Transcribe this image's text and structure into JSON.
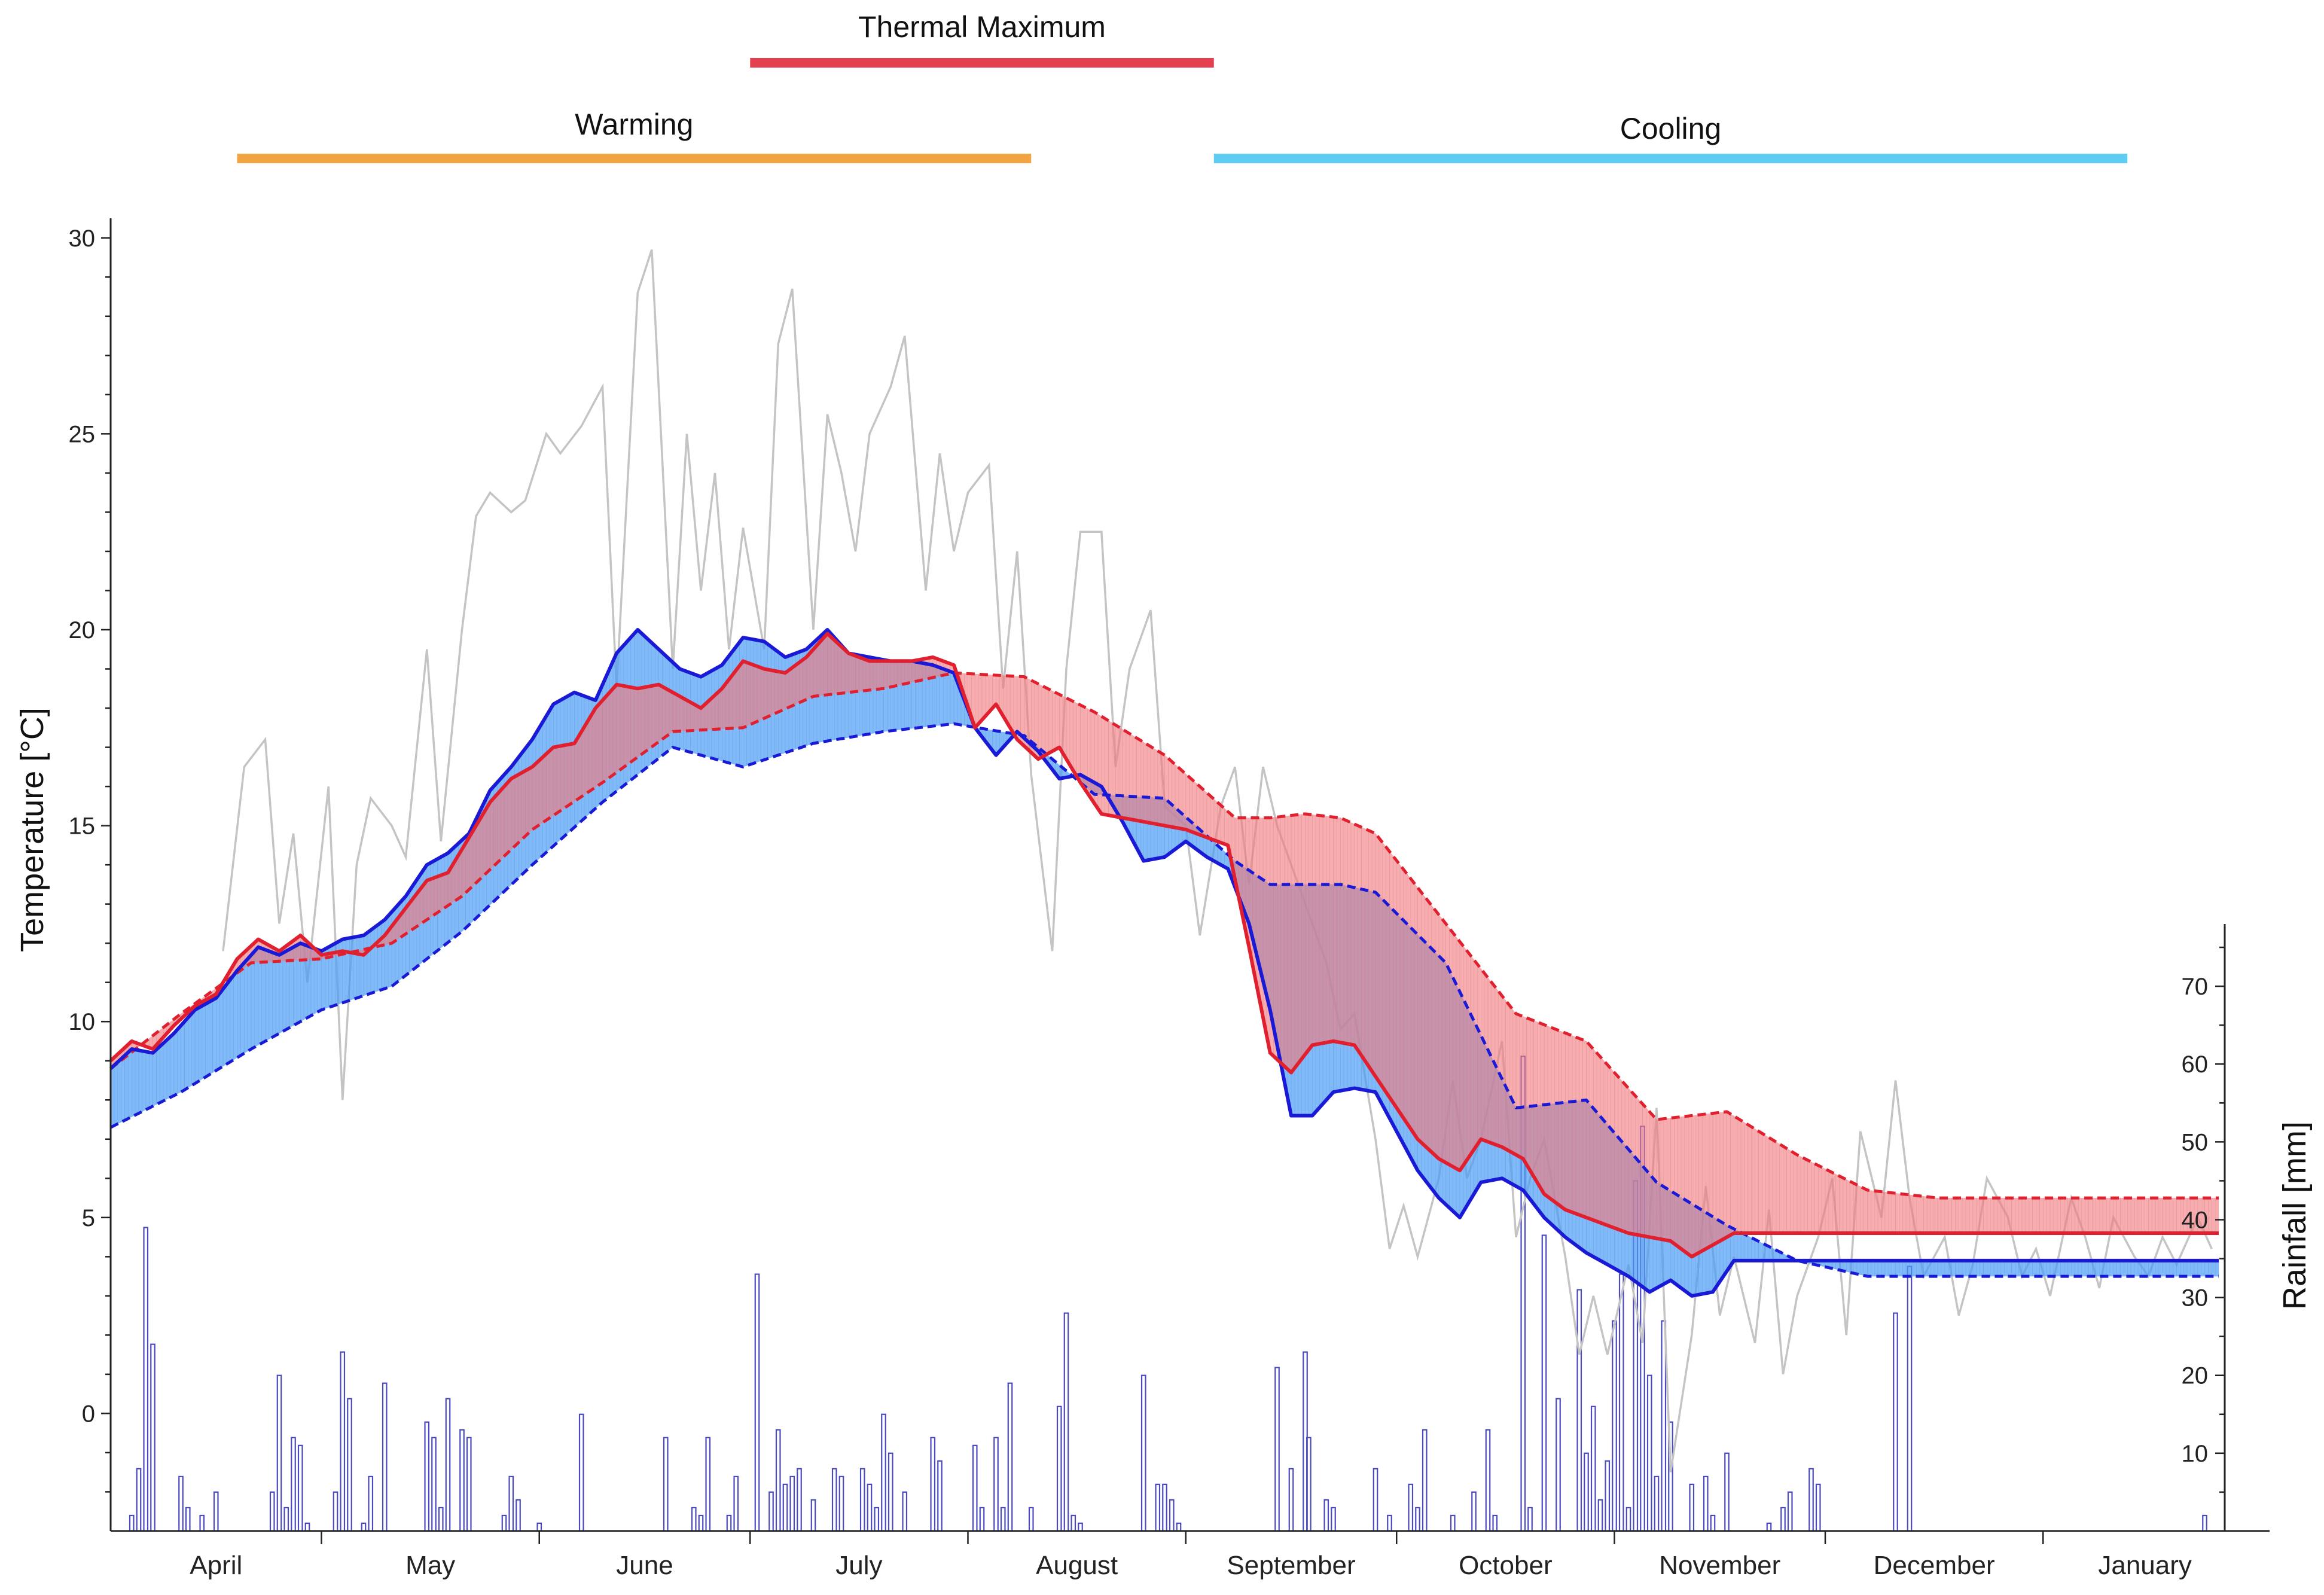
{
  "chart_data": {
    "type": "line",
    "title": "",
    "ylabel": "Temperature [°C]",
    "y2label": "Rainfall [mm]",
    "ylim": [
      -3,
      30.5
    ],
    "y2lim": [
      0,
      78
    ],
    "yticks": [
      0,
      5,
      10,
      15,
      20,
      25,
      30
    ],
    "y2ticks": [
      10,
      20,
      30,
      40,
      50,
      60,
      70
    ],
    "x_unit": "days since start of April",
    "xlim": [
      0,
      300
    ],
    "months": [
      "April",
      "May",
      "June",
      "July",
      "August",
      "September",
      "October",
      "November",
      "December",
      "January"
    ],
    "phases": [
      {
        "label": "Thermal Maximum",
        "start": 91,
        "end": 157,
        "color": "#e5404f"
      },
      {
        "label": "Warming",
        "start": 18,
        "end": 131,
        "color": "#f2a443"
      },
      {
        "label": "Cooling",
        "start": 157,
        "end": 287,
        "color": "#5fcdf2"
      }
    ],
    "colors": {
      "blue_line": "#1a1ad6",
      "red_line": "#e0202e",
      "blue_fill": "#4d9df5",
      "red_fill": "#f07a80",
      "air_temp": "#c4c4c4",
      "rain": "#4a4ac0"
    },
    "series": [
      {
        "name": "",
        "color": "#1a1ad6",
        "style": "solid",
        "x": [
          0,
          3,
          6,
          9,
          12,
          15,
          18,
          21,
          24,
          27,
          30,
          33,
          36,
          39,
          42,
          45,
          48,
          51,
          54,
          57,
          60,
          63,
          66,
          69,
          72,
          75,
          78,
          81,
          84,
          87,
          90,
          93,
          96,
          99,
          102,
          105,
          108,
          111,
          114,
          117,
          120,
          123,
          126,
          129,
          132,
          135,
          138,
          141,
          144,
          147,
          150,
          153,
          156,
          159,
          162,
          165,
          168,
          171,
          174,
          177,
          180,
          183,
          186,
          189,
          192,
          195,
          198,
          201,
          204,
          207,
          210,
          213,
          216,
          219,
          222,
          225,
          228,
          231,
          234,
          237,
          240,
          243,
          246,
          249,
          252,
          255,
          258,
          261,
          264,
          267,
          270,
          273,
          276,
          279,
          282,
          285,
          288,
          291,
          294,
          297,
          300
        ],
        "y": [
          8.8,
          9.3,
          9.2,
          9.7,
          10.3,
          10.6,
          11.3,
          11.9,
          11.7,
          12.0,
          11.8,
          12.1,
          12.2,
          12.6,
          13.2,
          14.0,
          14.3,
          14.8,
          15.9,
          16.5,
          17.2,
          18.1,
          18.4,
          18.2,
          19.4,
          20.0,
          19.5,
          19.0,
          18.8,
          19.1,
          19.8,
          19.7,
          19.3,
          19.5,
          20.0,
          19.4,
          19.3,
          19.2,
          19.2,
          19.1,
          18.9,
          17.5,
          16.8,
          17.4,
          16.9,
          16.2,
          16.3,
          16.0,
          15.1,
          14.1,
          14.2,
          14.6,
          14.2,
          13.9,
          12.5,
          10.3,
          7.6,
          7.6,
          8.2,
          8.3,
          8.2,
          7.2,
          6.2,
          5.5,
          5.0,
          5.9,
          6.0,
          5.7,
          5.0,
          4.5,
          4.1,
          3.8,
          3.5,
          3.1,
          3.4,
          3.0,
          3.1,
          3.9,
          3.9,
          3.9,
          3.9,
          3.9,
          3.9,
          3.9,
          3.9,
          3.9,
          3.9,
          3.9,
          3.9,
          3.9,
          3.9,
          3.9,
          3.9,
          3.9,
          3.9,
          3.9,
          3.9,
          3.9,
          3.9,
          3.9,
          3.9
        ]
      },
      {
        "name": "",
        "color": "#1a1ad6",
        "style": "dashed",
        "x": [
          0,
          10,
          20,
          30,
          40,
          50,
          60,
          70,
          80,
          90,
          100,
          110,
          120,
          130,
          140,
          150,
          160,
          165,
          170,
          175,
          180,
          190,
          200,
          210,
          220,
          230,
          240,
          250,
          260,
          270,
          280,
          290,
          300
        ],
        "y": [
          7.3,
          8.2,
          9.3,
          10.3,
          10.9,
          12.3,
          14.0,
          15.6,
          17.0,
          16.5,
          17.1,
          17.4,
          17.6,
          17.3,
          15.8,
          15.7,
          14.1,
          13.5,
          13.5,
          13.5,
          13.3,
          11.5,
          7.8,
          8.0,
          5.9,
          4.8,
          3.9,
          3.5,
          3.5,
          3.5,
          3.5,
          3.5,
          3.5
        ]
      },
      {
        "name": "",
        "color": "#e0202e",
        "style": "solid",
        "x": [
          0,
          3,
          6,
          9,
          12,
          15,
          18,
          21,
          24,
          27,
          30,
          33,
          36,
          39,
          42,
          45,
          48,
          51,
          54,
          57,
          60,
          63,
          66,
          69,
          72,
          75,
          78,
          81,
          84,
          87,
          90,
          93,
          96,
          99,
          102,
          105,
          108,
          111,
          114,
          117,
          120,
          123,
          126,
          129,
          132,
          135,
          138,
          141,
          144,
          147,
          150,
          153,
          156,
          159,
          162,
          165,
          168,
          171,
          174,
          177,
          180,
          183,
          186,
          189,
          192,
          195,
          198,
          201,
          204,
          207,
          210,
          213,
          216,
          219,
          222,
          225,
          228,
          231,
          234,
          237,
          240,
          243,
          246,
          249,
          252,
          255,
          258,
          261,
          264,
          267,
          270,
          273,
          276,
          279,
          282,
          285,
          288,
          291,
          294,
          297,
          300
        ],
        "y": [
          9.0,
          9.5,
          9.3,
          9.9,
          10.4,
          10.7,
          11.6,
          12.1,
          11.8,
          12.2,
          11.7,
          11.8,
          11.7,
          12.2,
          12.9,
          13.6,
          13.8,
          14.7,
          15.6,
          16.2,
          16.5,
          17.0,
          17.1,
          18.0,
          18.6,
          18.5,
          18.6,
          18.3,
          18.0,
          18.5,
          19.2,
          19.0,
          18.9,
          19.3,
          19.9,
          19.4,
          19.2,
          19.2,
          19.2,
          19.3,
          19.1,
          17.5,
          18.1,
          17.2,
          16.7,
          17.0,
          16.1,
          15.3,
          15.2,
          15.1,
          15.0,
          14.9,
          14.7,
          14.5,
          11.9,
          9.2,
          8.7,
          9.4,
          9.5,
          9.4,
          8.6,
          7.8,
          7.0,
          6.5,
          6.2,
          7.0,
          6.8,
          6.5,
          5.6,
          5.2,
          5.0,
          4.8,
          4.6,
          4.5,
          4.4,
          4.0,
          4.3,
          4.6,
          4.6,
          4.6,
          4.6,
          4.6,
          4.6,
          4.6,
          4.6,
          4.6,
          4.6,
          4.6,
          4.6,
          4.6,
          4.6,
          4.6,
          4.6,
          4.6,
          4.6,
          4.6,
          4.6,
          4.6,
          4.6,
          4.6,
          4.6
        ]
      },
      {
        "name": "",
        "color": "#e0202e",
        "style": "dashed",
        "x": [
          0,
          10,
          20,
          30,
          40,
          50,
          60,
          70,
          80,
          90,
          100,
          110,
          120,
          130,
          140,
          150,
          160,
          165,
          170,
          175,
          180,
          190,
          200,
          210,
          220,
          230,
          240,
          250,
          260,
          270,
          280,
          290,
          300
        ],
        "y": [
          8.8,
          10.2,
          11.5,
          11.6,
          12.0,
          13.2,
          14.9,
          16.1,
          17.4,
          17.5,
          18.3,
          18.5,
          18.9,
          18.8,
          17.9,
          16.8,
          15.2,
          15.2,
          15.3,
          15.2,
          14.8,
          12.5,
          10.2,
          9.5,
          7.5,
          7.7,
          6.6,
          5.7,
          5.5,
          5.5,
          5.5,
          5.5,
          5.5
        ]
      },
      {
        "name": "",
        "color": "#c4c4c4",
        "style": "solid",
        "x": [
          16,
          19,
          22,
          24,
          26,
          28,
          31,
          33,
          35,
          37,
          40,
          42,
          45,
          47,
          50,
          52,
          54,
          57,
          59,
          62,
          64,
          67,
          70,
          72,
          75,
          77,
          80,
          82,
          84,
          86,
          88,
          90,
          93,
          95,
          97,
          100,
          102,
          104,
          106,
          108,
          111,
          113,
          116,
          118,
          120,
          122,
          125,
          127,
          129,
          131,
          134,
          136,
          138,
          141,
          143,
          145,
          148,
          150,
          153,
          155,
          158,
          160,
          162,
          164,
          166,
          168,
          171,
          173,
          175,
          177,
          180,
          182,
          184,
          186,
          189,
          191,
          193,
          195,
          198,
          200,
          202,
          204,
          207,
          209,
          211,
          213,
          216,
          218,
          220,
          222,
          225,
          227,
          229,
          231,
          234,
          236,
          238,
          240,
          243,
          245,
          247,
          249,
          252,
          254,
          256,
          258,
          261,
          263,
          265,
          267,
          270,
          272,
          274,
          276,
          279,
          281,
          283,
          285,
          288,
          290,
          292,
          294,
          297,
          299
        ],
        "y": [
          11.8,
          16.5,
          17.2,
          12.5,
          14.8,
          11.0,
          16.0,
          8.0,
          14.0,
          15.7,
          15.0,
          14.2,
          19.5,
          14.6,
          20.0,
          22.9,
          23.5,
          23.0,
          23.3,
          25.0,
          24.5,
          25.2,
          26.2,
          18.5,
          28.6,
          29.7,
          19.0,
          25.0,
          21.0,
          24.0,
          19.5,
          22.6,
          19.5,
          27.3,
          28.7,
          20.0,
          25.5,
          24.0,
          22.0,
          25.0,
          26.2,
          27.5,
          21.0,
          24.5,
          22.0,
          23.5,
          24.2,
          18.5,
          22.0,
          16.3,
          11.8,
          19.0,
          22.5,
          22.5,
          16.5,
          19.0,
          20.5,
          15.5,
          15.0,
          12.2,
          15.5,
          16.5,
          13.5,
          16.5,
          15.0,
          14.0,
          12.5,
          11.5,
          9.8,
          10.2,
          7.0,
          4.2,
          5.3,
          4.0,
          6.0,
          8.5,
          6.0,
          7.0,
          9.5,
          4.5,
          6.0,
          7.0,
          4.0,
          1.5,
          3.0,
          1.5,
          3.8,
          1.8,
          7.8,
          -1.5,
          2.0,
          5.8,
          2.5,
          4.0,
          1.8,
          5.2,
          1.0,
          3.0,
          4.5,
          6.0,
          2.0,
          7.2,
          5.0,
          8.5,
          5.5,
          3.5,
          4.5,
          2.5,
          3.8,
          6.0,
          5.0,
          3.5,
          4.2,
          3.0,
          5.5,
          4.5,
          3.2,
          5.0,
          4.0,
          3.5,
          4.5,
          3.8,
          5.0,
          4.2
        ]
      },
      {
        "name": "",
        "color": "#4a4ac0",
        "style": "bar",
        "axis": "y2",
        "x": [
          3,
          4,
          5,
          6,
          10,
          11,
          13,
          15,
          23,
          24,
          25,
          26,
          27,
          28,
          32,
          33,
          34,
          36,
          37,
          39,
          45,
          46,
          47,
          48,
          50,
          51,
          56,
          57,
          58,
          61,
          67,
          79,
          83,
          84,
          85,
          88,
          89,
          92,
          94,
          95,
          96,
          97,
          98,
          100,
          103,
          104,
          107,
          108,
          109,
          110,
          111,
          113,
          117,
          118,
          123,
          124,
          126,
          127,
          128,
          131,
          135,
          136,
          137,
          138,
          147,
          149,
          150,
          151,
          152,
          166,
          168,
          170,
          170.5,
          173,
          174,
          180,
          182,
          185,
          186,
          187,
          191,
          194,
          196,
          197,
          201,
          202,
          204,
          206,
          209,
          210,
          211,
          212,
          213,
          214,
          215,
          216,
          217,
          218,
          219,
          220,
          221,
          222,
          225,
          227,
          228,
          230,
          236,
          238,
          239,
          242,
          243,
          254,
          256,
          298
        ],
        "y": [
          2,
          8,
          39,
          24,
          7,
          3,
          2,
          5,
          5,
          20,
          3,
          12,
          11,
          1,
          5,
          23,
          17,
          1,
          7,
          19,
          14,
          12,
          3,
          17,
          13,
          12,
          2,
          7,
          4,
          1,
          15,
          12,
          3,
          2,
          12,
          2,
          7,
          33,
          5,
          13,
          6,
          7,
          8,
          4,
          8,
          7,
          8,
          6,
          3,
          15,
          10,
          5,
          12,
          9,
          11,
          3,
          12,
          3,
          19,
          3,
          16,
          28,
          2,
          1,
          20,
          6,
          6,
          4,
          1,
          21,
          8,
          23,
          12,
          4,
          3,
          8,
          2,
          6,
          3,
          13,
          2,
          5,
          13,
          2,
          61,
          3,
          38,
          17,
          31,
          10,
          16,
          4,
          9,
          27,
          33,
          3,
          45,
          52,
          20,
          7,
          27,
          14,
          6,
          7,
          2,
          10,
          1,
          3,
          5,
          8,
          6,
          28,
          34,
          2
        ]
      }
    ]
  }
}
